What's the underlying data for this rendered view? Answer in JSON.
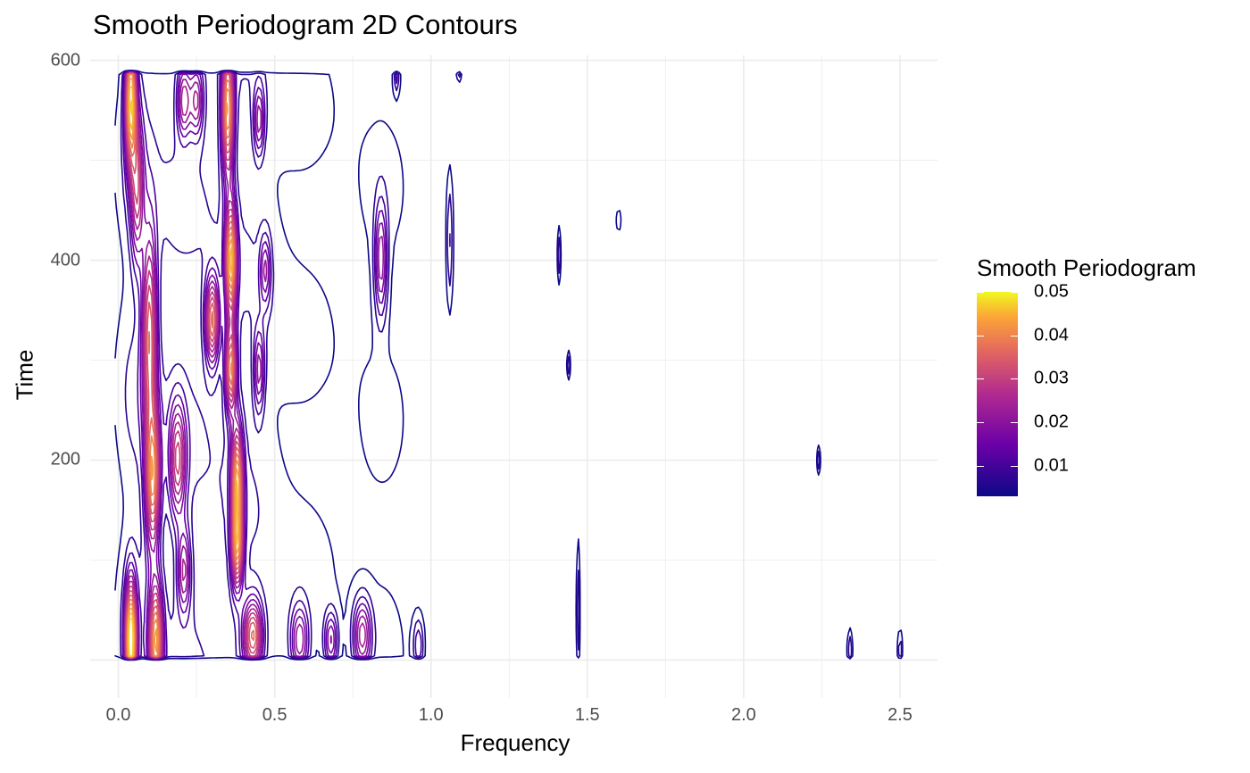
{
  "chart_data": {
    "type": "contour",
    "title": "Smooth Periodogram 2D Contours",
    "xlabel": "Frequency",
    "ylabel": "Time",
    "xlim": [
      -0.09,
      2.62
    ],
    "ylim": [
      -38,
      605
    ],
    "x_ticks": [
      "0.0",
      "0.5",
      "1.0",
      "1.5",
      "2.0",
      "2.5"
    ],
    "x_tick_values": [
      0.0,
      0.5,
      1.0,
      1.5,
      2.0,
      2.5
    ],
    "y_ticks": [
      "200",
      "400",
      "600"
    ],
    "y_tick_values": [
      200,
      400,
      600
    ],
    "grid": true,
    "legend": {
      "title": "Smooth Periodogram",
      "position": "right",
      "range": [
        0.003,
        0.05
      ],
      "ticks": [
        "0.01",
        "0.02",
        "0.03",
        "0.04",
        "0.05"
      ],
      "tick_values": [
        0.01,
        0.02,
        0.03,
        0.04,
        0.05
      ],
      "colormap": [
        "#0d0887",
        "#6a00a8",
        "#b12a90",
        "#e16462",
        "#fca636",
        "#f0f921"
      ]
    },
    "time_range": [
      0,
      590
    ],
    "peaks": [
      {
        "x": 0.04,
        "y": 560,
        "sx": 0.012,
        "sy": 45,
        "amp": 0.04
      },
      {
        "x": 0.04,
        "y": 20,
        "sx": 0.012,
        "sy": 40,
        "amp": 0.046
      },
      {
        "x": 0.06,
        "y": 470,
        "sx": 0.014,
        "sy": 50,
        "amp": 0.02
      },
      {
        "x": 0.1,
        "y": 330,
        "sx": 0.016,
        "sy": 70,
        "amp": 0.028
      },
      {
        "x": 0.11,
        "y": 180,
        "sx": 0.016,
        "sy": 50,
        "amp": 0.032
      },
      {
        "x": 0.12,
        "y": 20,
        "sx": 0.015,
        "sy": 40,
        "amp": 0.034
      },
      {
        "x": 0.19,
        "y": 200,
        "sx": 0.018,
        "sy": 40,
        "amp": 0.022
      },
      {
        "x": 0.21,
        "y": 90,
        "sx": 0.015,
        "sy": 30,
        "amp": 0.018
      },
      {
        "x": 0.21,
        "y": 560,
        "sx": 0.015,
        "sy": 25,
        "amp": 0.02
      },
      {
        "x": 0.25,
        "y": 560,
        "sx": 0.015,
        "sy": 25,
        "amp": 0.018
      },
      {
        "x": 0.3,
        "y": 340,
        "sx": 0.015,
        "sy": 30,
        "amp": 0.03
      },
      {
        "x": 0.35,
        "y": 550,
        "sx": 0.013,
        "sy": 45,
        "amp": 0.036
      },
      {
        "x": 0.36,
        "y": 400,
        "sx": 0.012,
        "sy": 40,
        "amp": 0.038
      },
      {
        "x": 0.36,
        "y": 290,
        "sx": 0.012,
        "sy": 30,
        "amp": 0.032
      },
      {
        "x": 0.38,
        "y": 180,
        "sx": 0.013,
        "sy": 40,
        "amp": 0.034
      },
      {
        "x": 0.38,
        "y": 110,
        "sx": 0.013,
        "sy": 30,
        "amp": 0.028
      },
      {
        "x": 0.43,
        "y": 25,
        "sx": 0.022,
        "sy": 25,
        "amp": 0.03
      },
      {
        "x": 0.45,
        "y": 540,
        "sx": 0.012,
        "sy": 25,
        "amp": 0.016
      },
      {
        "x": 0.45,
        "y": 290,
        "sx": 0.012,
        "sy": 30,
        "amp": 0.016
      },
      {
        "x": 0.47,
        "y": 390,
        "sx": 0.012,
        "sy": 25,
        "amp": 0.014
      },
      {
        "x": 0.58,
        "y": 20,
        "sx": 0.02,
        "sy": 25,
        "amp": 0.018
      },
      {
        "x": 0.68,
        "y": 20,
        "sx": 0.015,
        "sy": 20,
        "amp": 0.016
      },
      {
        "x": 0.78,
        "y": 25,
        "sx": 0.02,
        "sy": 25,
        "amp": 0.02
      },
      {
        "x": 0.84,
        "y": 400,
        "sx": 0.014,
        "sy": 40,
        "amp": 0.018
      },
      {
        "x": 0.96,
        "y": 15,
        "sx": 0.012,
        "sy": 20,
        "amp": 0.01
      },
      {
        "x": 1.06,
        "y": 420,
        "sx": 0.008,
        "sy": 50,
        "amp": 0.009
      },
      {
        "x": 0.89,
        "y": 585,
        "sx": 0.006,
        "sy": 12,
        "amp": 0.009
      },
      {
        "x": 1.09,
        "y": 590,
        "sx": 0.006,
        "sy": 8,
        "amp": 0.009
      },
      {
        "x": 1.41,
        "y": 405,
        "sx": 0.004,
        "sy": 20,
        "amp": 0.009
      },
      {
        "x": 1.44,
        "y": 295,
        "sx": 0.004,
        "sy": 10,
        "amp": 0.009
      },
      {
        "x": 1.47,
        "y": 50,
        "sx": 0.004,
        "sy": 50,
        "amp": 0.009
      },
      {
        "x": 1.6,
        "y": 440,
        "sx": 0.004,
        "sy": 8,
        "amp": 0.009
      },
      {
        "x": 2.24,
        "y": 200,
        "sx": 0.004,
        "sy": 10,
        "amp": 0.009
      },
      {
        "x": 2.34,
        "y": 10,
        "sx": 0.006,
        "sy": 15,
        "amp": 0.009
      },
      {
        "x": 2.5,
        "y": 10,
        "sx": 0.005,
        "sy": 15,
        "amp": 0.009
      }
    ],
    "background_field": [
      {
        "x": 0.05,
        "sx": 0.05,
        "amp": 0.006
      },
      {
        "x": 0.2,
        "sx": 0.09,
        "amp": 0.007
      },
      {
        "x": 0.4,
        "sx": 0.08,
        "amp": 0.006
      },
      {
        "x": 0.6,
        "sx": 0.1,
        "amp": 0.004
      },
      {
        "x": 0.85,
        "sx": 0.08,
        "amp": 0.004
      }
    ],
    "contour_levels": [
      0.003,
      0.006,
      0.009,
      0.012,
      0.015,
      0.018,
      0.021,
      0.024,
      0.027,
      0.03,
      0.033,
      0.036,
      0.039,
      0.042,
      0.045
    ]
  }
}
